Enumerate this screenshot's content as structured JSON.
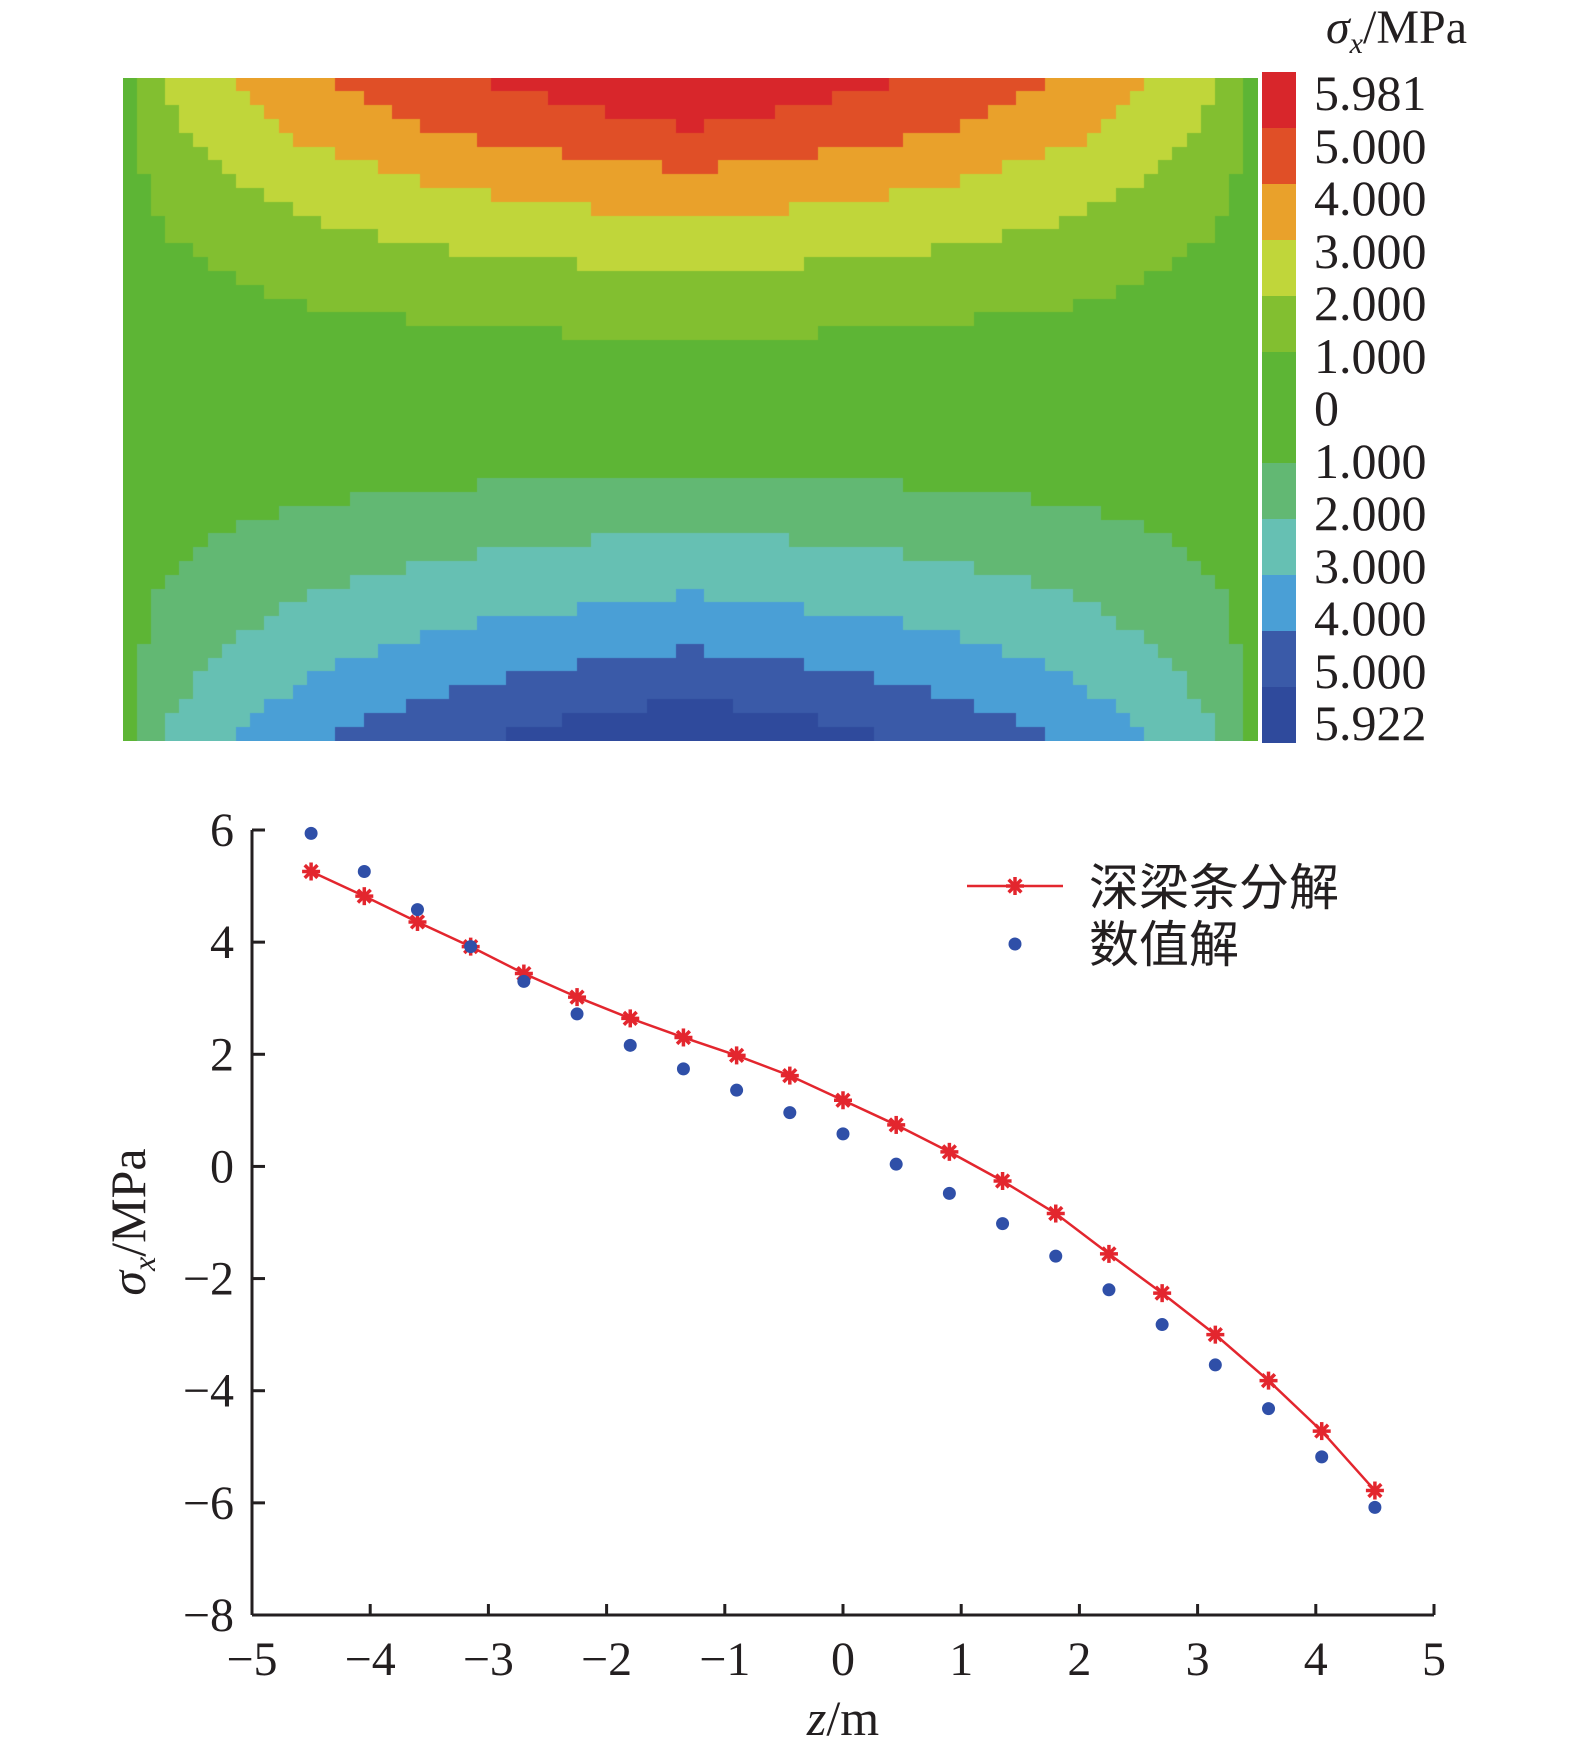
{
  "contour": {
    "title_symbol": "σ",
    "title_sub": "x",
    "title_unit": "/MPa",
    "colorbar_labels": [
      "5.981",
      "5.000",
      "4.000",
      "3.000",
      "2.000",
      "1.000",
      "0",
      "1.000",
      "2.000",
      "3.000",
      "4.000",
      "5.000",
      "5.922"
    ],
    "colorbar_colors": [
      "#d8262b",
      "#e04f27",
      "#e9a12b",
      "#c0d63a",
      "#82bf30",
      "#5db535",
      "#5db535",
      "#62b873",
      "#66c0b3",
      "#4a9fd6",
      "#3a5aa8",
      "#2f4a9c"
    ],
    "max": 5.981,
    "min": -5.922
  },
  "chart_data": {
    "type": "line",
    "xlabel": "z/m",
    "xlabel_var": "z",
    "xlabel_unit": "/m",
    "ylabel_var": "σ",
    "ylabel_sub": "x",
    "ylabel_unit": "/MPa",
    "xlim": [
      -5,
      5
    ],
    "ylim": [
      -8,
      6
    ],
    "xticks": [
      -5,
      -4,
      -3,
      -2,
      -1,
      0,
      1,
      2,
      3,
      4,
      5
    ],
    "yticks": [
      6,
      4,
      2,
      0,
      -2,
      -4,
      -6,
      -8
    ],
    "xtick_labels": [
      "−5",
      "−4",
      "−3",
      "−2",
      "−1",
      "0",
      "1",
      "2",
      "3",
      "4",
      "5"
    ],
    "ytick_labels": [
      "6",
      "4",
      "2",
      "0",
      "−2",
      "−4",
      "−6",
      "−8"
    ],
    "grid": false,
    "legend_position": "top-right",
    "x": [
      -4.5,
      -4.05,
      -3.6,
      -3.15,
      -2.7,
      -2.25,
      -1.8,
      -1.35,
      -0.9,
      -0.45,
      0,
      0.45,
      0.9,
      1.35,
      1.8,
      2.25,
      2.7,
      3.15,
      3.6,
      4.05,
      4.5
    ],
    "series": [
      {
        "name": "深梁条分解",
        "style": "line-star",
        "color": "#e3262e",
        "values": [
          5.26,
          4.82,
          4.36,
          3.92,
          3.44,
          3.02,
          2.64,
          2.3,
          1.98,
          1.62,
          1.18,
          0.74,
          0.26,
          -0.26,
          -0.84,
          -1.56,
          -2.26,
          -3.0,
          -3.82,
          -4.72,
          -5.78
        ]
      },
      {
        "name": "数值解",
        "style": "dot",
        "color": "#2f4fa8",
        "values": [
          5.94,
          5.26,
          4.58,
          3.92,
          3.3,
          2.72,
          2.16,
          1.74,
          1.36,
          0.96,
          0.58,
          0.04,
          -0.48,
          -1.02,
          -1.6,
          -2.2,
          -2.82,
          -3.54,
          -4.32,
          -5.18,
          -6.08
        ]
      }
    ]
  }
}
